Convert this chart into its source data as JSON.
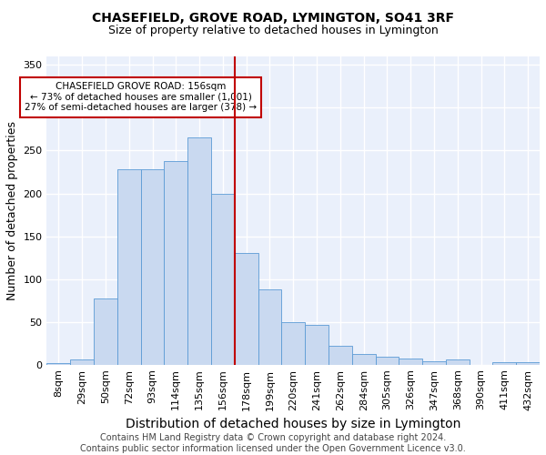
{
  "title": "CHASEFIELD, GROVE ROAD, LYMINGTON, SO41 3RF",
  "subtitle": "Size of property relative to detached houses in Lymington",
  "xlabel": "Distribution of detached houses by size in Lymington",
  "ylabel": "Number of detached properties",
  "categories": [
    "8sqm",
    "29sqm",
    "50sqm",
    "72sqm",
    "93sqm",
    "114sqm",
    "135sqm",
    "156sqm",
    "178sqm",
    "199sqm",
    "220sqm",
    "241sqm",
    "262sqm",
    "284sqm",
    "305sqm",
    "326sqm",
    "347sqm",
    "368sqm",
    "390sqm",
    "411sqm",
    "432sqm"
  ],
  "values": [
    2,
    6,
    77,
    228,
    228,
    238,
    265,
    200,
    130,
    88,
    50,
    46,
    22,
    12,
    9,
    7,
    4,
    6,
    0,
    3,
    3
  ],
  "bar_color": "#c9d9f0",
  "bar_edge_color": "#5b9bd5",
  "background_color": "#eaf0fb",
  "grid_color": "#ffffff",
  "vline_x": 7.5,
  "vline_color": "#c00000",
  "annotation_text": "CHASEFIELD GROVE ROAD: 156sqm\n← 73% of detached houses are smaller (1,001)\n27% of semi-detached houses are larger (378) →",
  "annotation_box_color": "#ffffff",
  "annotation_box_edge_color": "#c00000",
  "ylim": [
    0,
    360
  ],
  "yticks": [
    0,
    50,
    100,
    150,
    200,
    250,
    300,
    350
  ],
  "footer_text": "Contains HM Land Registry data © Crown copyright and database right 2024.\nContains public sector information licensed under the Open Government Licence v3.0.",
  "title_fontsize": 10,
  "subtitle_fontsize": 9,
  "xlabel_fontsize": 10,
  "ylabel_fontsize": 9,
  "footer_fontsize": 7,
  "tick_fontsize": 8,
  "annot_fontsize": 7.5
}
